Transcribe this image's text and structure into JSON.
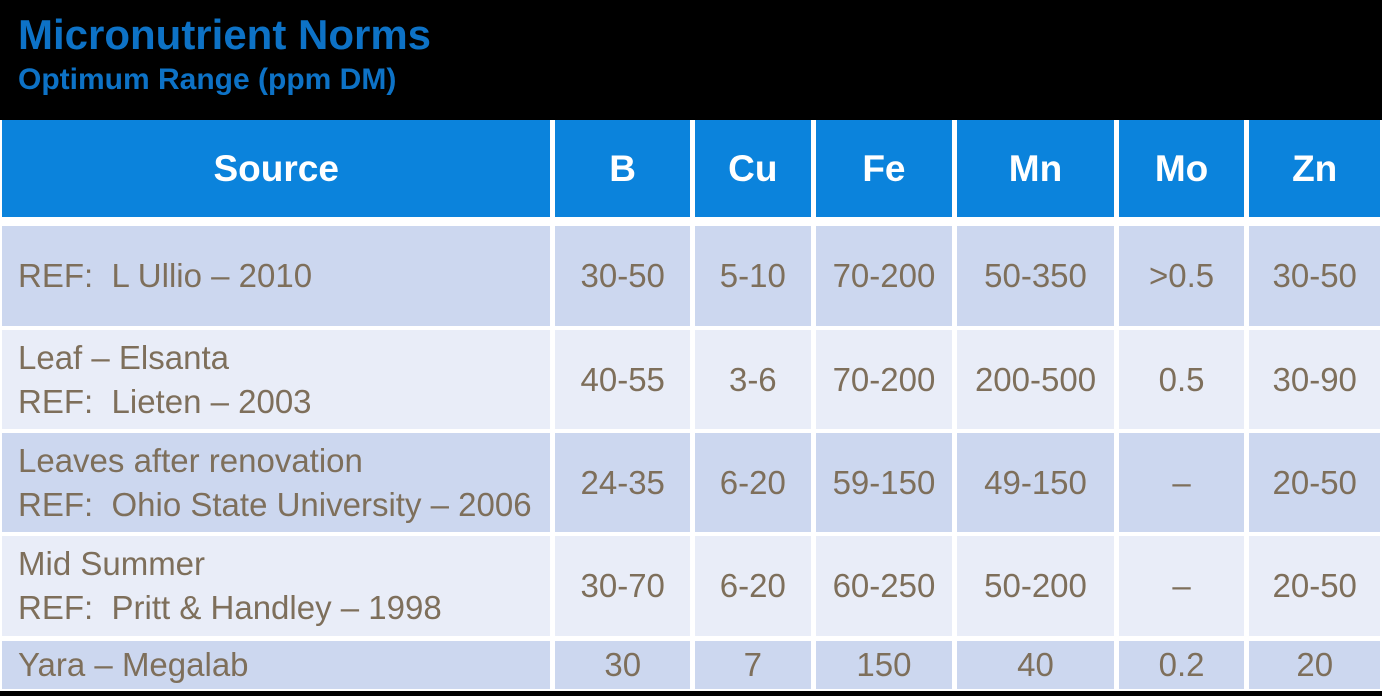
{
  "title": "Micronutrient Norms",
  "subtitle": "Optimum Range (ppm DM)",
  "colors": {
    "background": "#000000",
    "title_text": "#0d72c6",
    "header_fill": "#0b83dc",
    "header_text": "#ffffff",
    "row_fill_dark": "#ccd7ef",
    "row_fill_light": "#e9edf8",
    "cell_text": "#7e6f5b",
    "grid_lines": "#ffffff"
  },
  "table": {
    "columns": [
      "Source",
      "B",
      "Cu",
      "Fe",
      "Mn",
      "Mo",
      "Zn"
    ],
    "rows": [
      {
        "source_line1": "REF:  L Ullio – 2010",
        "b": "30-50",
        "cu": "5-10",
        "fe": "70-200",
        "mn": "50-350",
        "mo": ">0.5",
        "zn": "30-50"
      },
      {
        "source_line1": "Leaf – Elsanta",
        "source_line2": "REF:  Lieten – 2003",
        "b": "40-55",
        "cu": "3-6",
        "fe": "70-200",
        "mn": "200-500",
        "mo": "0.5",
        "zn": "30-90"
      },
      {
        "source_line1": "Leaves after renovation",
        "source_line2": "REF:  Ohio State University – 2006",
        "b": "24-35",
        "cu": "6-20",
        "fe": "59-150",
        "mn": "49-150",
        "mo": "–",
        "zn": "20-50"
      },
      {
        "source_line1": "Mid Summer",
        "source_line2": "REF:  Pritt & Handley – 1998",
        "b": "30-70",
        "cu": "6-20",
        "fe": "60-250",
        "mn": "50-200",
        "mo": "–",
        "zn": "20-50"
      },
      {
        "source_line1": "Yara – Megalab",
        "b": "30",
        "cu": "7",
        "fe": "150",
        "mn": "40",
        "mo": "0.2",
        "zn": "20"
      }
    ]
  }
}
